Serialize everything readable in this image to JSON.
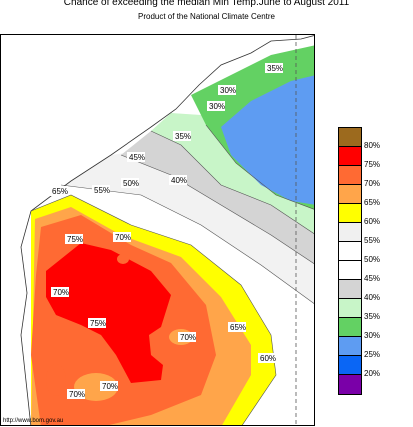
{
  "title": "Chance of exceeding the median Min Temp.June to August 2011",
  "subtitle": "Product of the National Climate Centre",
  "footer_url": "http://www.bom.gov.au",
  "legend": [
    {
      "label": "80%",
      "color": "#9c6a1e"
    },
    {
      "label": "75%",
      "color": "#ff0000"
    },
    {
      "label": "70%",
      "color": "#ff6a33"
    },
    {
      "label": "65%",
      "color": "#ffa54a"
    },
    {
      "label": "60%",
      "color": "#ffff00"
    },
    {
      "label": "55%",
      "color": "#f0f0f0"
    },
    {
      "label": "50%",
      "color": "#ffffff"
    },
    {
      "label": "45%",
      "color": "#ffffff"
    },
    {
      "label": "40%",
      "color": "#d4d4d4"
    },
    {
      "label": "35%",
      "color": "#c8f5c8"
    },
    {
      "label": "30%",
      "color": "#63d163"
    },
    {
      "label": "25%",
      "color": "#5e9cf2"
    },
    {
      "label": "20%",
      "color": "#0a66f5"
    },
    {
      "label": "",
      "color": "#7a00a8"
    }
  ],
  "map_labels": {
    "l1": "35%",
    "l2": "30%",
    "l3": "30%",
    "l4": "35%",
    "l5": "45%",
    "l6": "40%",
    "l7": "50%",
    "l8": "55%",
    "l9": "65%",
    "l10": "75%",
    "l11": "70%",
    "l12": "70%",
    "l13": "75%",
    "l14": "70%",
    "l15": "65%",
    "l16": "60%",
    "l17": "70%",
    "l18": "70%"
  }
}
